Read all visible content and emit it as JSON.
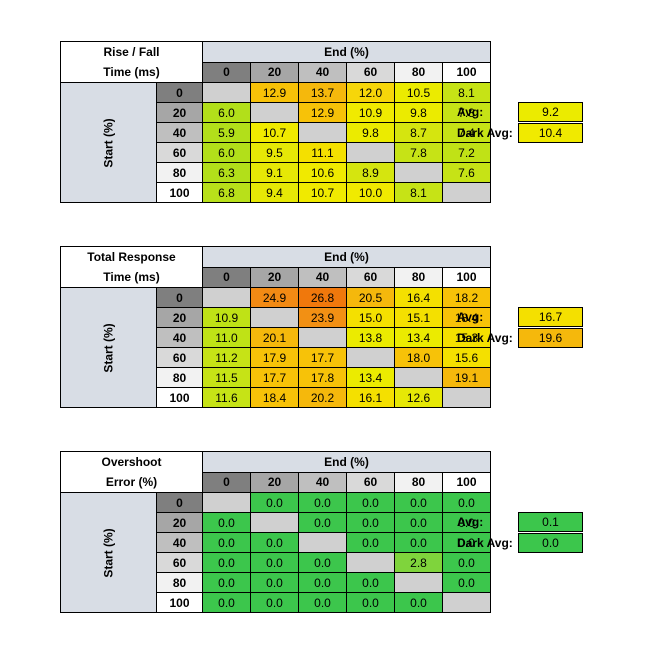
{
  "colors": {
    "header_fill": "#d8dde5",
    "diagonal": "#d0d0d0",
    "level_shades": [
      "#7f7f7f",
      "#a6a6a6",
      "#bfbfbf",
      "#d9d9d9",
      "#f2f2f2",
      "#ffffff"
    ]
  },
  "chart_data": [
    {
      "type": "table",
      "title_line1": "Rise / Fall",
      "title_line2": "Time (ms)",
      "col_axis_label": "End (%)",
      "row_axis_label": "Start (%)",
      "levels": [
        "0",
        "20",
        "40",
        "60",
        "80",
        "100"
      ],
      "values": [
        [
          null,
          12.9,
          13.7,
          12.0,
          10.5,
          8.1
        ],
        [
          6.0,
          null,
          12.9,
          10.9,
          9.8,
          7.8
        ],
        [
          5.9,
          10.7,
          null,
          9.8,
          8.7,
          7.4
        ],
        [
          6.0,
          9.5,
          11.1,
          null,
          7.8,
          7.2
        ],
        [
          6.3,
          9.1,
          10.6,
          8.9,
          null,
          7.6
        ],
        [
          6.8,
          9.4,
          10.7,
          10.0,
          8.1,
          null
        ]
      ],
      "cell_colors": [
        [
          "#d0d0d0",
          "#f7c208",
          "#f5b80c",
          "#f6d60a",
          "#ebeb00",
          "#c6e316"
        ],
        [
          "#b2df1a",
          "#d0d0d0",
          "#f7c208",
          "#f0ea00",
          "#ebeb00",
          "#c6e316"
        ],
        [
          "#b2df1a",
          "#f0ea00",
          "#d0d0d0",
          "#ebeb00",
          "#d5e50f",
          "#c6e316"
        ],
        [
          "#b2df1a",
          "#e6e806",
          "#f4e000",
          "#d0d0d0",
          "#c6e316",
          "#c0e216"
        ],
        [
          "#b2df1a",
          "#e6e806",
          "#f0ea00",
          "#d5e50f",
          "#d0d0d0",
          "#c6e316"
        ],
        [
          "#b8e01a",
          "#e6e806",
          "#f0ea00",
          "#f0ea00",
          "#c6e316",
          "#d0d0d0"
        ]
      ],
      "avg_label": "Avg:",
      "avg_value": "9.2",
      "avg_color": "#ebeb00",
      "dark_avg_label": "Dark Avg:",
      "dark_avg_value": "10.4",
      "dark_avg_color": "#f0ea00"
    },
    {
      "type": "table",
      "title_line1": "Total Response",
      "title_line2": "Time (ms)",
      "col_axis_label": "End (%)",
      "row_axis_label": "Start (%)",
      "levels": [
        "0",
        "20",
        "40",
        "60",
        "80",
        "100"
      ],
      "values": [
        [
          null,
          24.9,
          26.8,
          20.5,
          16.4,
          18.2
        ],
        [
          10.9,
          null,
          23.9,
          15.0,
          15.1,
          18.4
        ],
        [
          11.0,
          20.1,
          null,
          13.8,
          13.4,
          15.3
        ],
        [
          11.2,
          17.9,
          17.7,
          null,
          18.0,
          15.6
        ],
        [
          11.5,
          17.7,
          17.8,
          13.4,
          null,
          19.1
        ],
        [
          11.6,
          18.4,
          20.2,
          16.1,
          12.6,
          null
        ]
      ],
      "cell_colors": [
        [
          "#d0d0d0",
          "#f28a14",
          "#f0780c",
          "#f5b80c",
          "#f4e000",
          "#f7c208"
        ],
        [
          "#bfe216",
          "#d0d0d0",
          "#f29014",
          "#f4e000",
          "#f4e000",
          "#f7c208"
        ],
        [
          "#bfe216",
          "#f5b80c",
          "#d0d0d0",
          "#ebeb00",
          "#ebeb00",
          "#f4e000"
        ],
        [
          "#c6e316",
          "#f7c208",
          "#f7c208",
          "#d0d0d0",
          "#f7c208",
          "#f4e000"
        ],
        [
          "#c6e316",
          "#f7c208",
          "#f7c208",
          "#ebeb00",
          "#d0d0d0",
          "#f5b80c"
        ],
        [
          "#c6e316",
          "#f7c208",
          "#f5b80c",
          "#f4e000",
          "#e6e806",
          "#d0d0d0"
        ]
      ],
      "avg_label": "Avg:",
      "avg_value": "16.7",
      "avg_color": "#f4e000",
      "dark_avg_label": "Dark Avg:",
      "dark_avg_value": "19.6",
      "dark_avg_color": "#f5b80c"
    },
    {
      "type": "table",
      "title_line1": "Overshoot",
      "title_line2": "Error (%)",
      "col_axis_label": "End (%)",
      "row_axis_label": "Start (%)",
      "levels": [
        "0",
        "20",
        "40",
        "60",
        "80",
        "100"
      ],
      "values": [
        [
          null,
          0.0,
          0.0,
          0.0,
          0.0,
          0.0
        ],
        [
          0.0,
          null,
          0.0,
          0.0,
          0.0,
          0.0
        ],
        [
          0.0,
          0.0,
          null,
          0.0,
          0.0,
          0.0
        ],
        [
          0.0,
          0.0,
          0.0,
          null,
          2.8,
          0.0
        ],
        [
          0.0,
          0.0,
          0.0,
          0.0,
          null,
          0.0
        ],
        [
          0.0,
          0.0,
          0.0,
          0.0,
          0.0,
          null
        ]
      ],
      "cell_colors": [
        [
          "#d0d0d0",
          "#3cc64c",
          "#3cc64c",
          "#3cc64c",
          "#3cc64c",
          "#3cc64c"
        ],
        [
          "#3cc64c",
          "#d0d0d0",
          "#3cc64c",
          "#3cc64c",
          "#3cc64c",
          "#3cc64c"
        ],
        [
          "#3cc64c",
          "#3cc64c",
          "#d0d0d0",
          "#3cc64c",
          "#3cc64c",
          "#3cc64c"
        ],
        [
          "#3cc64c",
          "#3cc64c",
          "#3cc64c",
          "#d0d0d0",
          "#7fd43c",
          "#3cc64c"
        ],
        [
          "#3cc64c",
          "#3cc64c",
          "#3cc64c",
          "#3cc64c",
          "#d0d0d0",
          "#3cc64c"
        ],
        [
          "#3cc64c",
          "#3cc64c",
          "#3cc64c",
          "#3cc64c",
          "#3cc64c",
          "#d0d0d0"
        ]
      ],
      "avg_label": "Avg:",
      "avg_value": "0.1",
      "avg_color": "#3cc64c",
      "dark_avg_label": "Dark Avg:",
      "dark_avg_value": "0.0",
      "dark_avg_color": "#3cc64c"
    }
  ]
}
